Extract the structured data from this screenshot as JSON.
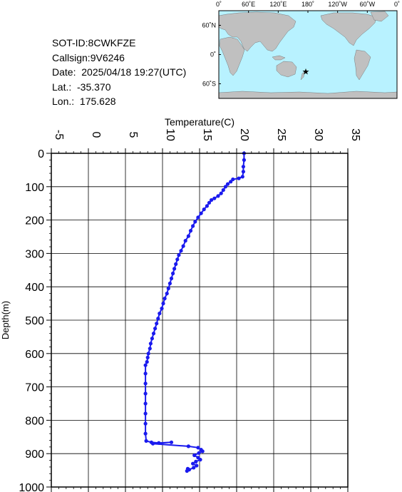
{
  "info": {
    "sot_id": "SOT-ID:8CWKFZE",
    "callsign": "Callsign:9V6246",
    "date": "Date:  2025/04/18 19:27(UTC)",
    "lat": "Lat.:  -35.370",
    "lon": "Lon.:  175.628"
  },
  "map": {
    "lon_labels": [
      "0˚",
      "60˚E",
      "120˚E",
      "180˚",
      "120˚W",
      "60˚W",
      "0˚"
    ],
    "lat_labels": [
      "60˚N",
      "0˚",
      "60˚S"
    ],
    "marker": {
      "lat": -35.37,
      "lon": 175.628,
      "color": "#ff0000"
    },
    "ocean_color": "#b8f2ff",
    "land_color": "#c0c0c0"
  },
  "chart_data": {
    "type": "scatter",
    "xlabel": "Temperature(C)",
    "ylabel": "Depth(m)",
    "xlim": [
      -5,
      35
    ],
    "ylim": [
      1000,
      0
    ],
    "x_ticks": [
      "-5",
      "0",
      "5",
      "10",
      "15",
      "20",
      "25",
      "30",
      "35"
    ],
    "y_ticks": [
      "0",
      "100",
      "200",
      "300",
      "400",
      "500",
      "600",
      "700",
      "800",
      "900",
      "1000"
    ],
    "grid": true,
    "color": "#1a1aee",
    "series": [
      {
        "points": [
          [
            21.0,
            0
          ],
          [
            21.0,
            20
          ],
          [
            20.9,
            40
          ],
          [
            20.9,
            55
          ],
          [
            20.8,
            70
          ],
          [
            20.3,
            75
          ],
          [
            19.5,
            78
          ],
          [
            19.2,
            85
          ],
          [
            18.8,
            92
          ],
          [
            18.5,
            100
          ],
          [
            18.2,
            110
          ],
          [
            17.9,
            120
          ],
          [
            17.5,
            128
          ],
          [
            17.0,
            135
          ],
          [
            16.6,
            140
          ],
          [
            16.3,
            148
          ],
          [
            16.0,
            158
          ],
          [
            15.6,
            168
          ],
          [
            15.2,
            180
          ],
          [
            14.8,
            192
          ],
          [
            14.4,
            205
          ],
          [
            14.1,
            218
          ],
          [
            13.8,
            232
          ],
          [
            13.5,
            248
          ],
          [
            13.1,
            262
          ],
          [
            12.8,
            278
          ],
          [
            12.5,
            292
          ],
          [
            12.2,
            305
          ],
          [
            12.0,
            318
          ],
          [
            11.8,
            332
          ],
          [
            11.6,
            346
          ],
          [
            11.4,
            360
          ],
          [
            11.2,
            375
          ],
          [
            11.0,
            390
          ],
          [
            10.8,
            405
          ],
          [
            10.6,
            420
          ],
          [
            10.3,
            435
          ],
          [
            10.1,
            450
          ],
          [
            9.9,
            465
          ],
          [
            9.6,
            480
          ],
          [
            9.4,
            495
          ],
          [
            9.2,
            510
          ],
          [
            9.0,
            525
          ],
          [
            8.8,
            540
          ],
          [
            8.6,
            555
          ],
          [
            8.4,
            570
          ],
          [
            8.3,
            585
          ],
          [
            8.1,
            600
          ],
          [
            8.0,
            612
          ],
          [
            7.9,
            625
          ],
          [
            7.7,
            635
          ],
          [
            7.7,
            660
          ],
          [
            7.7,
            690
          ],
          [
            7.7,
            720
          ],
          [
            7.7,
            750
          ],
          [
            7.7,
            780
          ],
          [
            7.7,
            810
          ],
          [
            7.7,
            840
          ],
          [
            7.8,
            862
          ],
          [
            8.5,
            866
          ],
          [
            9.5,
            868
          ],
          [
            11.2,
            866
          ],
          [
            8.7,
            870
          ],
          [
            13.5,
            878
          ],
          [
            14.8,
            882
          ],
          [
            15.2,
            888
          ],
          [
            15.4,
            893
          ],
          [
            14.9,
            898
          ],
          [
            14.3,
            905
          ],
          [
            14.8,
            912
          ],
          [
            15.1,
            918
          ],
          [
            14.5,
            924
          ],
          [
            14.1,
            930
          ],
          [
            14.6,
            936
          ],
          [
            14.2,
            942
          ],
          [
            13.6,
            948
          ],
          [
            13.3,
            952
          ],
          [
            13.4,
            945
          ]
        ]
      }
    ]
  }
}
